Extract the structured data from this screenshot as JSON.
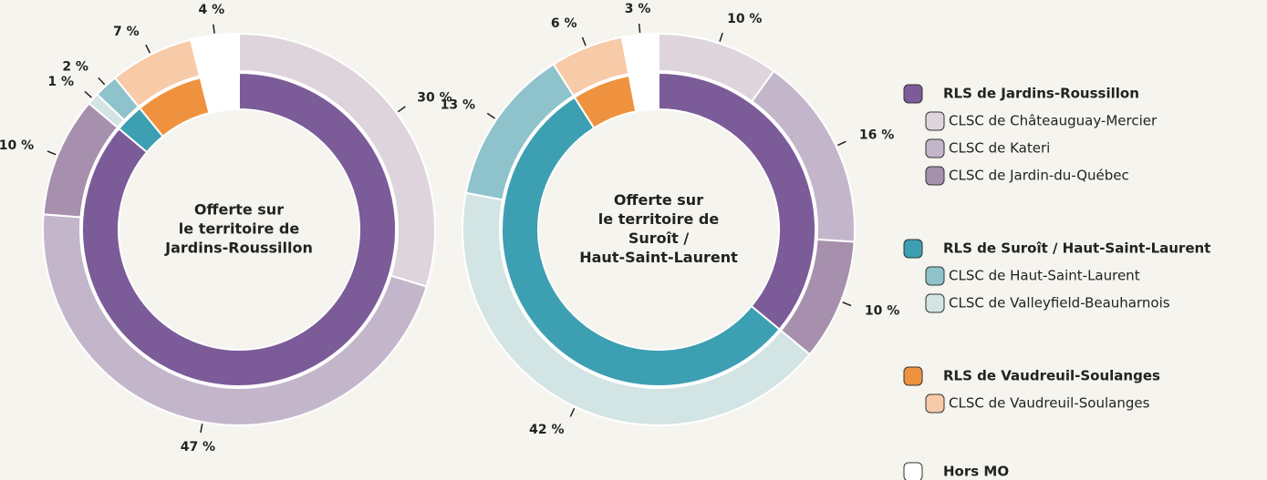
{
  "chart_data": [
    {
      "type": "donut",
      "title": [
        "Offerte sur",
        "le territoire de",
        "Jardins-Roussillon"
      ],
      "inner_values": [
        87,
        3,
        7,
        4
      ],
      "inner_colors": [
        "#7b5b98",
        "#3d9fb2",
        "#ef923f",
        "#ffffff"
      ],
      "outer_values": [
        30,
        47,
        10,
        1,
        2,
        7,
        4
      ],
      "outer_value_labels": [
        "30 %",
        "47 %",
        "10 %",
        "1 %",
        "2 %",
        "7 %",
        "4 %"
      ],
      "outer_colors": [
        "#ddd4dc",
        "#c3b6cb",
        "#a690ad",
        "#d2e4e3",
        "#8fc3cc",
        "#f7caa8",
        "#ffffff"
      ]
    },
    {
      "type": "donut",
      "title": [
        "Offerte sur",
        "le territoire de",
        "Suroît /",
        "Haut-Saint-Laurent"
      ],
      "inner_values": [
        36,
        55,
        6,
        3
      ],
      "inner_colors": [
        "#7b5b98",
        "#3d9fb2",
        "#ef923f",
        "#ffffff"
      ],
      "outer_values": [
        10,
        16,
        10,
        42,
        13,
        6,
        3
      ],
      "outer_value_labels": [
        "10 %",
        "16 %",
        "10 %",
        "42 %",
        "13 %",
        "6 %",
        "3 %"
      ],
      "outer_colors": [
        "#ddd4dc",
        "#c3b6cb",
        "#a690ad",
        "#d2e4e3",
        "#8fc3cc",
        "#f7caa8",
        "#ffffff"
      ]
    }
  ],
  "legend": [
    {
      "name": "RLS de Jardins-Roussillon",
      "color": "#7b5b98",
      "items": [
        {
          "name": "CLSC de Châteauguay-Mercier",
          "color": "#ddd4dc"
        },
        {
          "name": "CLSC de Kateri",
          "color": "#c3b6cb"
        },
        {
          "name": "CLSC de Jardin-du-Québec",
          "color": "#a690ad"
        }
      ]
    },
    {
      "name": "RLS de Suroît / Haut-Saint-Laurent",
      "color": "#3d9fb2",
      "items": [
        {
          "name": "CLSC de Haut-Saint-Laurent",
          "color": "#8fc3cc"
        },
        {
          "name": "CLSC de Valleyfield-Beauharnois",
          "color": "#d2e4e3"
        }
      ]
    },
    {
      "name": "RLS de Vaudreuil-Soulanges",
      "color": "#ef923f",
      "items": [
        {
          "name": "CLSC de Vaudreuil-Soulanges",
          "color": "#f7caa8"
        }
      ]
    },
    {
      "name": "Hors MO",
      "color": "#ffffff",
      "items": []
    }
  ]
}
